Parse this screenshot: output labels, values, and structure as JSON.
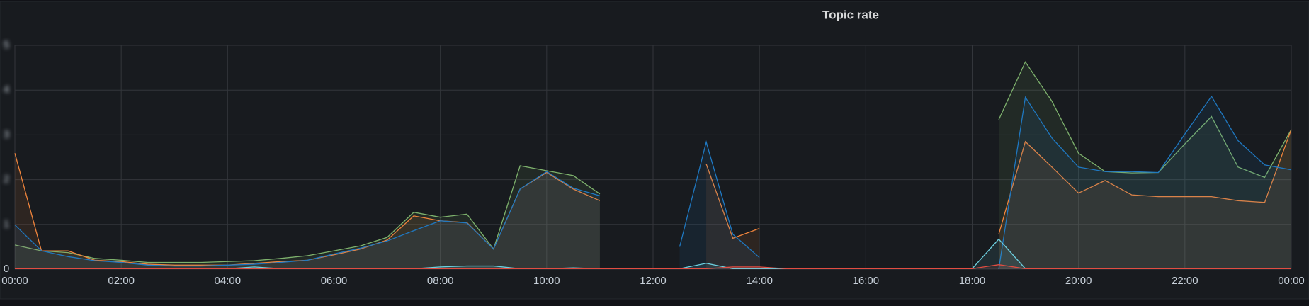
{
  "chart_data": {
    "type": "line",
    "title": "Topic rate",
    "x": [
      0,
      0.5,
      1,
      1.5,
      2,
      2.5,
      3,
      3.5,
      4,
      4.5,
      5,
      5.5,
      6,
      6.5,
      7,
      7.5,
      8,
      8.5,
      9,
      9.5,
      10,
      10.5,
      11,
      11.5,
      12,
      12.5,
      13,
      13.5,
      14,
      14.5,
      15,
      15.5,
      16,
      16.5,
      17,
      17.5,
      18,
      18.5,
      19,
      19.5,
      20,
      20.5,
      21,
      21.5,
      22,
      22.5,
      23,
      23.5,
      24
    ],
    "series": [
      {
        "color": "#7eb26d",
        "values": [
          0.54,
          0.41,
          0.37,
          0.24,
          0.2,
          0.15,
          0.15,
          0.15,
          0.17,
          0.19,
          0.24,
          0.3,
          0.41,
          0.52,
          0.71,
          1.27,
          1.16,
          1.23,
          0.45,
          2.31,
          2.2,
          2.09,
          1.68,
          null,
          null,
          null,
          null,
          null,
          null,
          null,
          null,
          null,
          null,
          null,
          null,
          null,
          null,
          3.34,
          4.63,
          3.75,
          2.59,
          2.18,
          2.15,
          2.16,
          2.8,
          3.41,
          2.28,
          2.05,
          3.12
        ]
      },
      {
        "color": "#ef843c",
        "values": [
          2.59,
          0.41,
          0.41,
          0.2,
          0.17,
          0.11,
          0.09,
          0.09,
          0.09,
          0.13,
          0.17,
          0.2,
          0.32,
          0.45,
          0.65,
          1.19,
          1.08,
          1.04,
          0.45,
          1.79,
          2.16,
          1.79,
          1.53,
          null,
          null,
          null,
          2.35,
          0.69,
          0.91,
          null,
          null,
          null,
          null,
          null,
          null,
          null,
          null,
          0.78,
          2.85,
          2.28,
          1.7,
          1.98,
          1.66,
          1.62,
          1.62,
          1.62,
          1.53,
          1.49,
          3.12
        ]
      },
      {
        "color": "#1f78c1",
        "values": [
          0.99,
          0.41,
          0.28,
          0.19,
          0.15,
          0.09,
          0.07,
          0.07,
          0.09,
          0.11,
          0.15,
          0.2,
          0.34,
          0.47,
          0.63,
          0.86,
          1.08,
          1.03,
          0.45,
          1.79,
          2.18,
          1.81,
          1.64,
          null,
          null,
          0.5,
          2.84,
          0.78,
          0.26,
          null,
          null,
          null,
          null,
          null,
          null,
          null,
          null,
          0,
          3.84,
          2.93,
          2.28,
          2.18,
          2.18,
          2.16,
          3.02,
          3.86,
          2.87,
          2.33,
          2.22
        ]
      },
      {
        "color": "#6ed0e0",
        "values": [
          0.01,
          0.01,
          0.01,
          0.01,
          0.01,
          0.01,
          0.01,
          0.01,
          0.01,
          0.05,
          0.01,
          0.01,
          0.01,
          0.01,
          0.01,
          0.01,
          0.05,
          0.07,
          0.07,
          0.01,
          0.01,
          0.03,
          0.01,
          0.01,
          0.01,
          0.01,
          0.13,
          0.01,
          0.01,
          0.01,
          0.01,
          0.01,
          0.01,
          0.01,
          0.01,
          0.01,
          0.01,
          0.67,
          0.01,
          0.01,
          0.01,
          0.01,
          0.01,
          0.01,
          0.01,
          0.01,
          0.01,
          0.01,
          0.01
        ]
      },
      {
        "color": "#e24d42",
        "values": [
          0.01,
          0.01,
          0.01,
          0.01,
          0.01,
          0.01,
          0.01,
          0.01,
          0.01,
          0.01,
          0.01,
          0.01,
          0.01,
          0.01,
          0.01,
          0.01,
          0.01,
          0.01,
          0.01,
          0.01,
          0.01,
          0.01,
          0.01,
          0.01,
          0.01,
          0.01,
          0.01,
          0.05,
          0.05,
          0.01,
          0.01,
          0.01,
          0.01,
          0.01,
          0.01,
          0.01,
          0.01,
          0.1,
          0.01,
          0.01,
          0.01,
          0.01,
          0.01,
          0.01,
          0.01,
          0.01,
          0.01,
          0.01,
          0.01
        ]
      }
    ],
    "xlim": [
      0,
      24
    ],
    "xticks": [
      {
        "value": 0,
        "label": "00:00"
      },
      {
        "value": 2,
        "label": "02:00"
      },
      {
        "value": 4,
        "label": "04:00"
      },
      {
        "value": 6,
        "label": "06:00"
      },
      {
        "value": 8,
        "label": "08:00"
      },
      {
        "value": 10,
        "label": "10:00"
      },
      {
        "value": 12,
        "label": "12:00"
      },
      {
        "value": 14,
        "label": "14:00"
      },
      {
        "value": 16,
        "label": "16:00"
      },
      {
        "value": 18,
        "label": "18:00"
      },
      {
        "value": 20,
        "label": "20:00"
      },
      {
        "value": 22,
        "label": "22:00"
      },
      {
        "value": 24,
        "label": "00:00"
      }
    ],
    "ylim": [
      0,
      5
    ],
    "yticks": [
      0,
      1,
      2,
      3,
      4,
      5
    ],
    "grid": true
  }
}
